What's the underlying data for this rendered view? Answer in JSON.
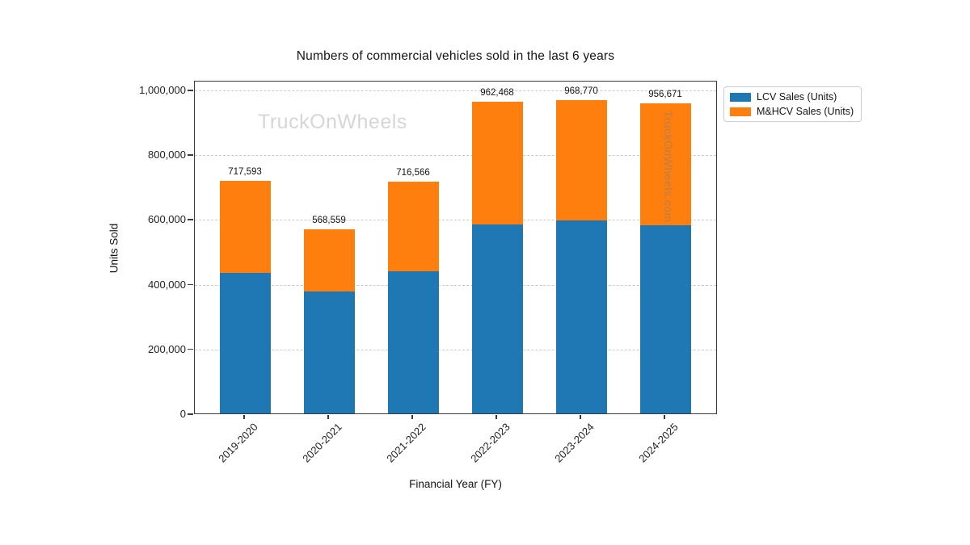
{
  "watermarks": {
    "plot": "TruckOnWheels",
    "side": "TruckOnWheels.com"
  },
  "chart_data": {
    "type": "bar",
    "stacked": true,
    "title": "Numbers of commercial vehicles sold in the last 6 years",
    "xlabel": "Financial Year (FY)",
    "ylabel": "Units Sold",
    "categories": [
      "2019-2020",
      "2020-2021",
      "2021-2022",
      "2022-2023",
      "2023-2024",
      "2024-2025"
    ],
    "series": [
      {
        "name": "LCV Sales (Units)",
        "color": "#1f77b4",
        "values": [
          435000,
          377000,
          440000,
          583000,
          595000,
          582000
        ]
      },
      {
        "name": "M&HCV Sales (Units)",
        "color": "#ff7f0e",
        "values": [
          282593,
          191559,
          276566,
          379468,
          373770,
          374671
        ]
      }
    ],
    "totals": [
      717593,
      568559,
      716566,
      962468,
      968770,
      956671
    ],
    "total_labels": [
      "717,593",
      "568,559",
      "716,566",
      "962,468",
      "968,770",
      "956,671"
    ],
    "ylim": [
      0,
      1030000
    ],
    "yticks": [
      {
        "value": 0,
        "label": "0"
      },
      {
        "value": 200000,
        "label": "200,000"
      },
      {
        "value": 400000,
        "label": "400,000"
      },
      {
        "value": 600000,
        "label": "600,000"
      },
      {
        "value": 800000,
        "label": "800,000"
      },
      {
        "value": 1000000,
        "label": "1,000,000"
      }
    ],
    "grid": "horizontal-dashed",
    "legend_position": "upper-right-outside"
  }
}
